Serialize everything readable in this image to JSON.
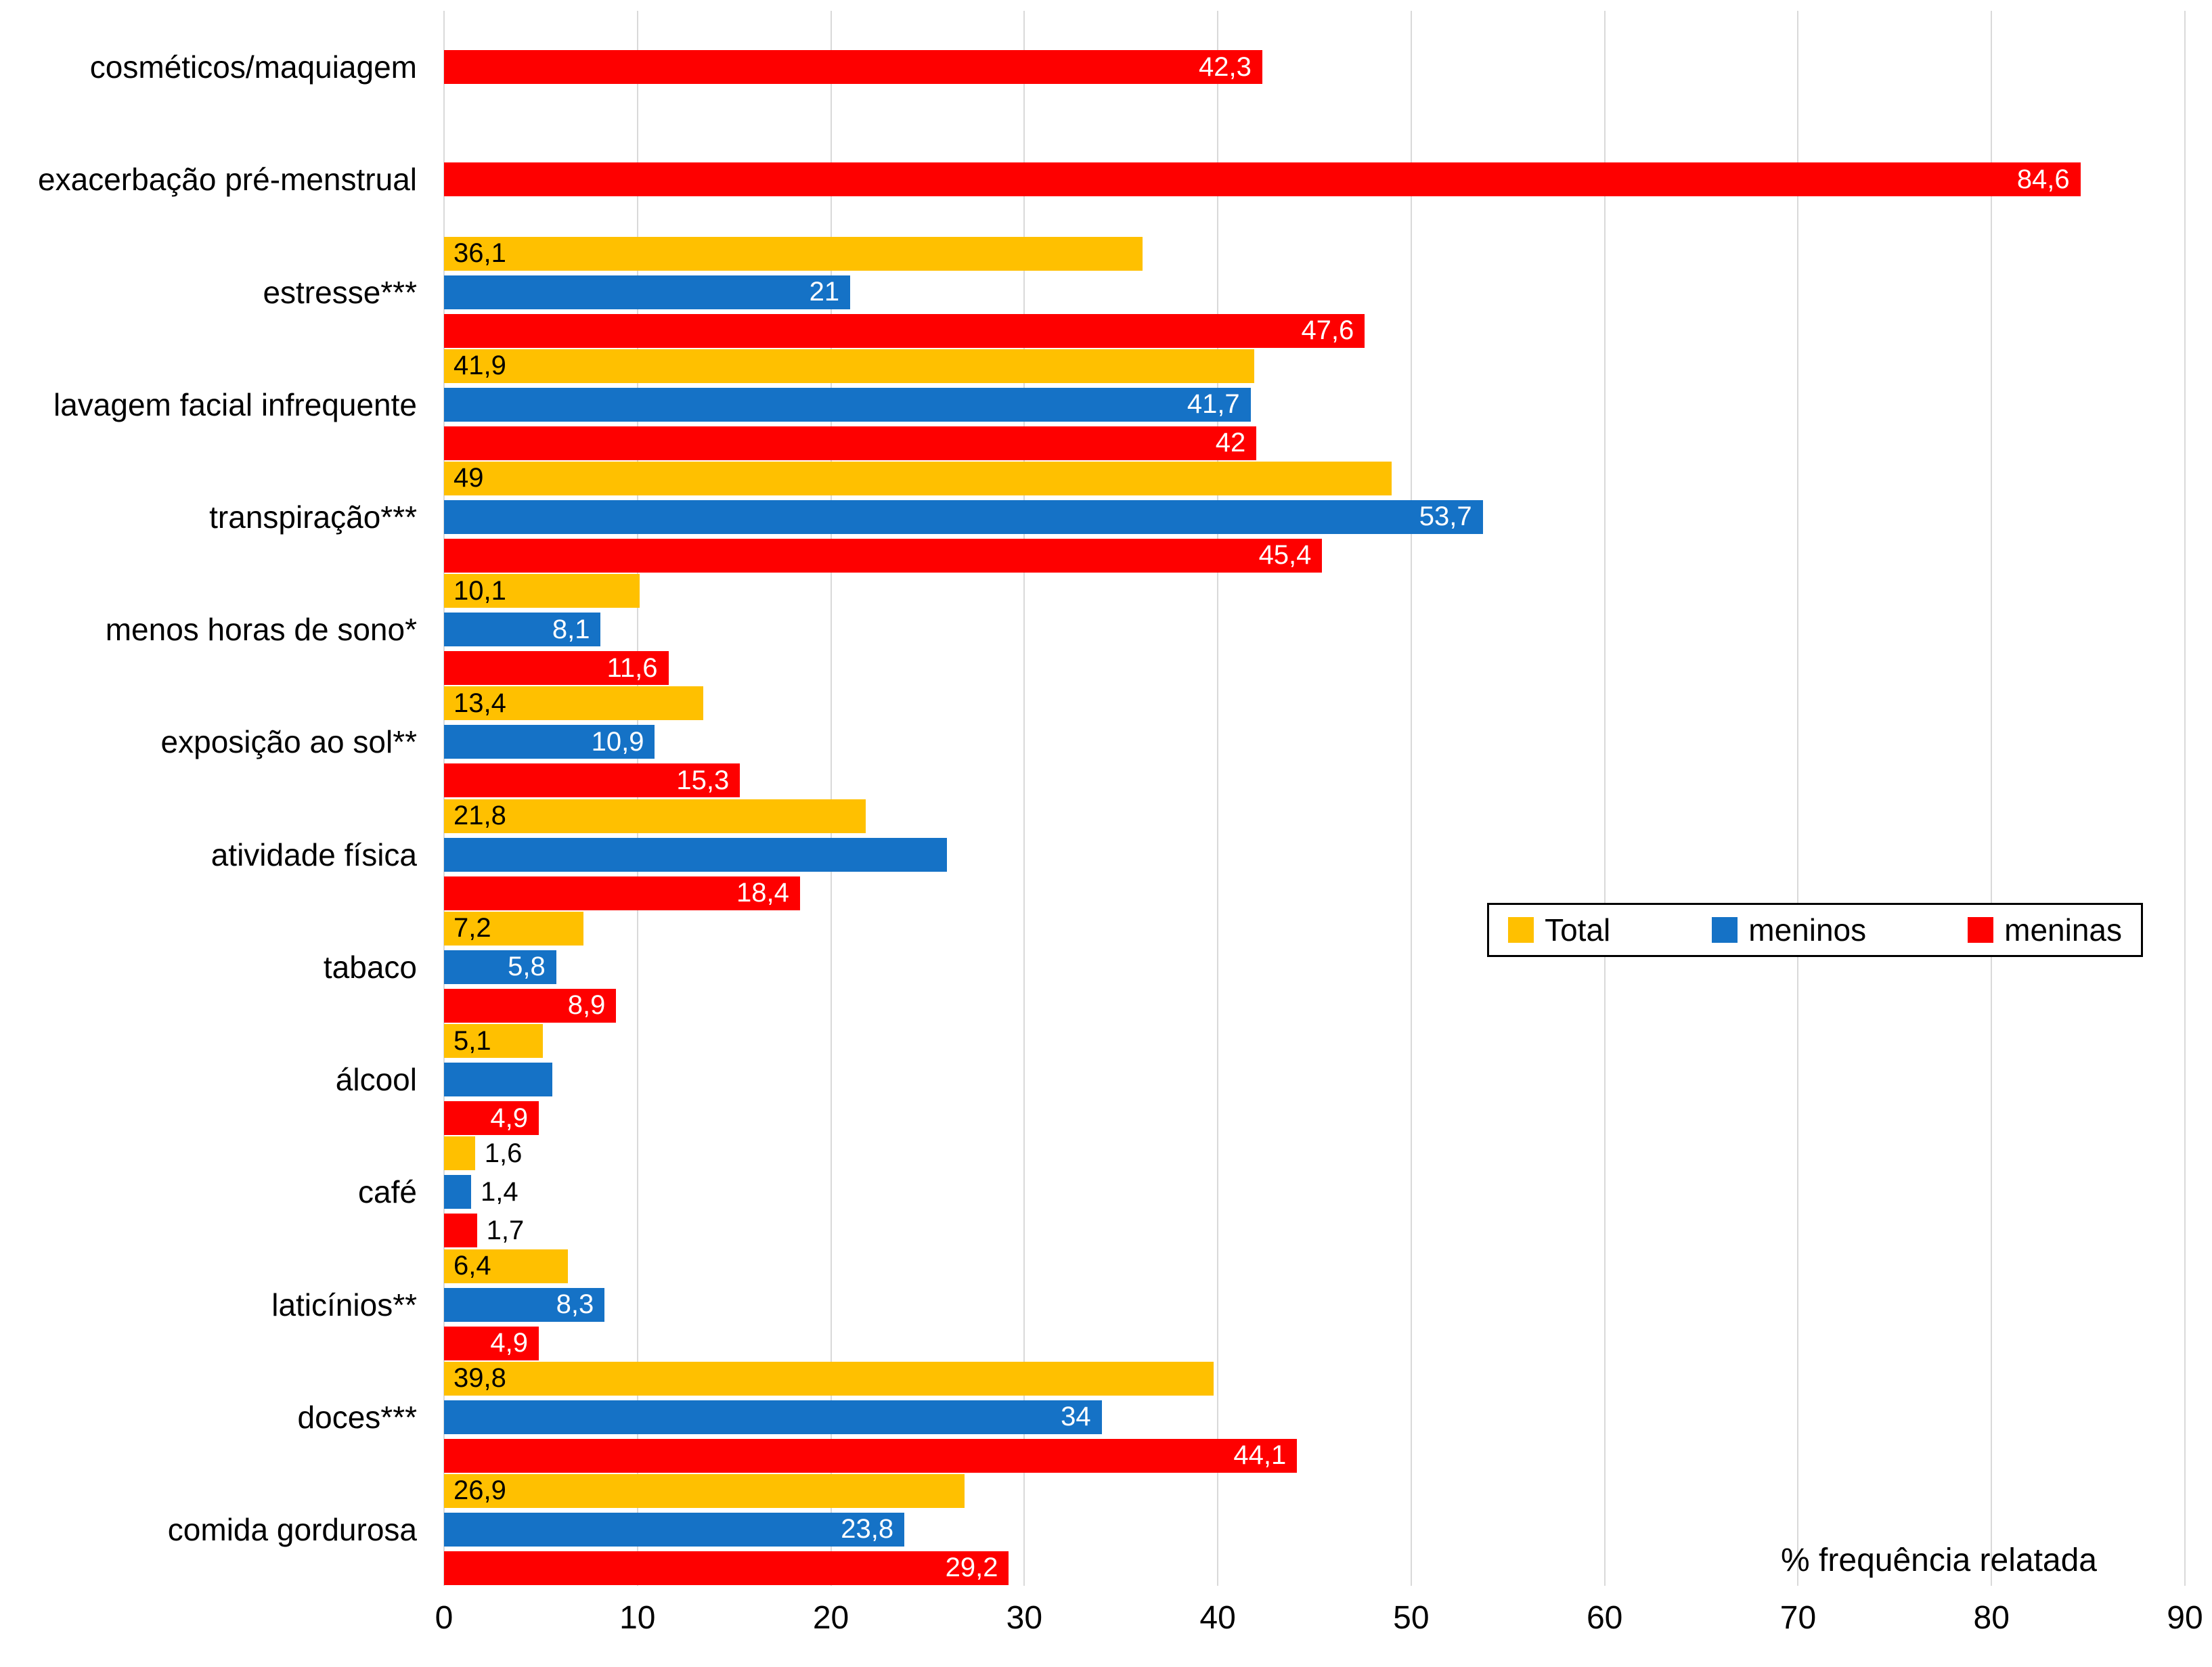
{
  "chart_data": {
    "type": "bar",
    "orientation": "horizontal",
    "title": "",
    "xlabel": "% frequência relatada",
    "ylabel": "",
    "xlim": [
      0,
      90
    ],
    "xticks": [
      0,
      10,
      20,
      30,
      40,
      50,
      60,
      70,
      80,
      90
    ],
    "grid": true,
    "gridline_color": "#D9D9D9",
    "legend_position": "middle-right",
    "legend": [
      "Total",
      "meninos",
      "meninas"
    ],
    "colors": {
      "Total": "#FFC000",
      "meninos": "#1572C6",
      "meninas": "#FE0000"
    },
    "categories": [
      {
        "label": "cosméticos/maquiagem",
        "bars": [
          {
            "series": "meninas",
            "value": 42.3,
            "label": "42,3"
          }
        ]
      },
      {
        "label": "exacerbação pré-menstrual",
        "bars": [
          {
            "series": "meninas",
            "value": 84.6,
            "label": "84,6"
          }
        ]
      },
      {
        "label": "estresse***",
        "bars": [
          {
            "series": "Total",
            "value": 36.1,
            "label": "36,1"
          },
          {
            "series": "meninos",
            "value": 21,
            "label": "21"
          },
          {
            "series": "meninas",
            "value": 47.6,
            "label": "47,6"
          }
        ]
      },
      {
        "label": "lavagem facial infrequente",
        "bars": [
          {
            "series": "Total",
            "value": 41.9,
            "label": "41,9"
          },
          {
            "series": "meninos",
            "value": 41.7,
            "label": "41,7"
          },
          {
            "series": "meninas",
            "value": 42,
            "label": "42"
          }
        ]
      },
      {
        "label": "transpiração***",
        "bars": [
          {
            "series": "Total",
            "value": 49,
            "label": "49"
          },
          {
            "series": "meninos",
            "value": 53.7,
            "label": "53,7"
          },
          {
            "series": "meninas",
            "value": 45.4,
            "label": "45,4"
          }
        ]
      },
      {
        "label": "menos horas de sono*",
        "bars": [
          {
            "series": "Total",
            "value": 10.1,
            "label": "10,1"
          },
          {
            "series": "meninos",
            "value": 8.1,
            "label": "8,1"
          },
          {
            "series": "meninas",
            "value": 11.6,
            "label": "11,6"
          }
        ]
      },
      {
        "label": "exposição ao sol**",
        "bars": [
          {
            "series": "Total",
            "value": 13.4,
            "label": "13,4"
          },
          {
            "series": "meninos",
            "value": 10.9,
            "label": "10,9"
          },
          {
            "series": "meninas",
            "value": 15.3,
            "label": "15,3"
          }
        ]
      },
      {
        "label": "atividade física",
        "bars": [
          {
            "series": "Total",
            "value": 21.8,
            "label": "21,8"
          },
          {
            "series": "meninos",
            "value": 26,
            "label": ""
          },
          {
            "series": "meninas",
            "value": 18.4,
            "label": "18,4"
          }
        ]
      },
      {
        "label": "tabaco",
        "bars": [
          {
            "series": "Total",
            "value": 7.2,
            "label": "7,2"
          },
          {
            "series": "meninos",
            "value": 5.8,
            "label": "5,8"
          },
          {
            "series": "meninas",
            "value": 8.9,
            "label": "8,9"
          }
        ]
      },
      {
        "label": "álcool",
        "bars": [
          {
            "series": "Total",
            "value": 5.1,
            "label": "5,1"
          },
          {
            "series": "meninos",
            "value": 5.6,
            "label": ""
          },
          {
            "series": "meninas",
            "value": 4.9,
            "label": "4,9"
          }
        ]
      },
      {
        "label": "café",
        "bars": [
          {
            "series": "Total",
            "value": 1.6,
            "label": "1,6"
          },
          {
            "series": "meninos",
            "value": 1.4,
            "label": "1,4"
          },
          {
            "series": "meninas",
            "value": 1.7,
            "label": "1,7"
          }
        ]
      },
      {
        "label": "laticínios**",
        "bars": [
          {
            "series": "Total",
            "value": 6.4,
            "label": "6,4"
          },
          {
            "series": "meninos",
            "value": 8.3,
            "label": "8,3"
          },
          {
            "series": "meninas",
            "value": 4.9,
            "label": "4,9"
          }
        ]
      },
      {
        "label": "doces***",
        "bars": [
          {
            "series": "Total",
            "value": 39.8,
            "label": "39,8"
          },
          {
            "series": "meninos",
            "value": 34,
            "label": "34"
          },
          {
            "series": "meninas",
            "value": 44.1,
            "label": "44,1"
          }
        ]
      },
      {
        "label": "comida gordurosa",
        "bars": [
          {
            "series": "Total",
            "value": 26.9,
            "label": "26,9"
          },
          {
            "series": "meninos",
            "value": 23.8,
            "label": "23,8"
          },
          {
            "series": "meninas",
            "value": 29.2,
            "label": "29,2"
          }
        ]
      }
    ]
  }
}
